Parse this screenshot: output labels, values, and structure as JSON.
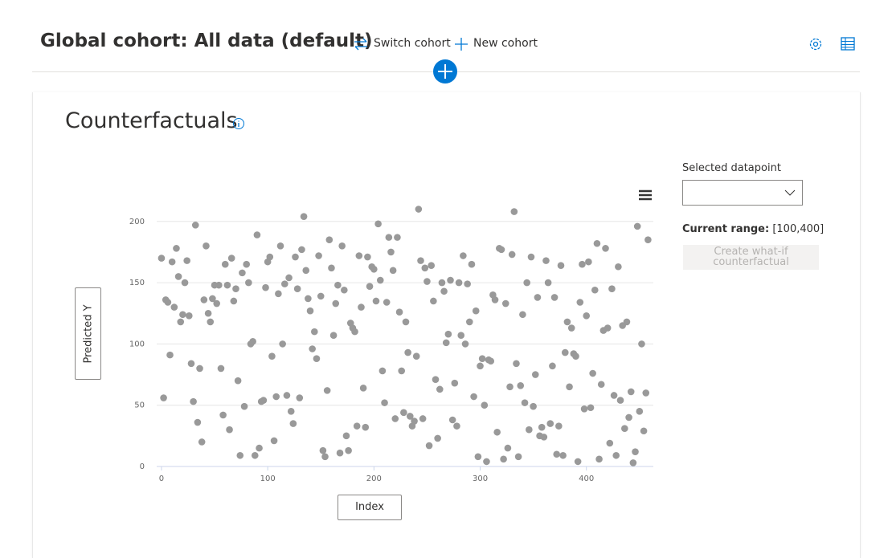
{
  "header": {
    "title": "Global cohort: All data (default)",
    "switch_cohort": "Switch cohort",
    "new_cohort": "New cohort"
  },
  "panel": {
    "title": "Counterfactuals"
  },
  "side": {
    "selected_label": "Selected datapoint",
    "range_label": "Current range:",
    "range_value": "[100,400]",
    "button": "Create what-if counterfactual"
  },
  "chart_data": {
    "type": "scatter",
    "xlabel": "Index",
    "ylabel": "Predicted Y",
    "color": "#999999",
    "grid": true,
    "xlim": [
      -4.5,
      463
    ],
    "ylim": [
      0,
      230
    ],
    "xticks": [
      0,
      100,
      200,
      300,
      400
    ],
    "yticks": [
      0,
      50,
      100,
      150,
      200
    ],
    "x": [
      0,
      2,
      4,
      6,
      8,
      10,
      12,
      14,
      16,
      18,
      20,
      22,
      24,
      26,
      28,
      30,
      32,
      34,
      36,
      38,
      40,
      42,
      44,
      46,
      48,
      50,
      52,
      54,
      56,
      58,
      60,
      62,
      64,
      66,
      68,
      70,
      72,
      74,
      76,
      78,
      80,
      82,
      84,
      86,
      88,
      90,
      92,
      94,
      96,
      98,
      100,
      102,
      104,
      106,
      108,
      110,
      112,
      114,
      116,
      118,
      120,
      122,
      124,
      126,
      128,
      130,
      132,
      134,
      136,
      138,
      140,
      142,
      144,
      146,
      148,
      150,
      152,
      154,
      156,
      158,
      160,
      162,
      164,
      166,
      168,
      170,
      172,
      174,
      176,
      178,
      180,
      182,
      184,
      186,
      188,
      190,
      192,
      194,
      196,
      198,
      200,
      202,
      204,
      206,
      208,
      210,
      212,
      214,
      216,
      218,
      220,
      222,
      224,
      226,
      228,
      230,
      232,
      234,
      236,
      238,
      240,
      242,
      244,
      246,
      248,
      250,
      252,
      254,
      256,
      258,
      260,
      262,
      264,
      266,
      268,
      270,
      272,
      274,
      276,
      278,
      280,
      282,
      284,
      286,
      288,
      290,
      292,
      294,
      296,
      298,
      300,
      302,
      304,
      306,
      308,
      310,
      312,
      314,
      316,
      318,
      320,
      322,
      324,
      326,
      328,
      330,
      332,
      334,
      336,
      338,
      340,
      342,
      344,
      346,
      348,
      350,
      352,
      354,
      356,
      358,
      360,
      362,
      364,
      366,
      368,
      370,
      372,
      374,
      376,
      378,
      380,
      382,
      384,
      386,
      388,
      390,
      392,
      394,
      396,
      398,
      400,
      402,
      404,
      406,
      408,
      410,
      412,
      414,
      416,
      418,
      420,
      422,
      424,
      426,
      428,
      430,
      432,
      434,
      436,
      438,
      440,
      442,
      444,
      446,
      448,
      450,
      452,
      454,
      456,
      458
    ],
    "values": [
      170,
      56,
      136,
      134,
      91,
      167,
      130,
      178,
      155,
      118,
      124,
      150,
      168,
      123,
      84,
      53,
      197,
      36,
      80,
      20,
      136,
      180,
      125,
      118,
      137,
      148,
      133,
      148,
      80,
      42,
      165,
      148,
      30,
      170,
      135,
      145,
      70,
      9,
      158,
      49,
      165,
      150,
      100,
      102,
      9,
      189,
      15,
      53,
      54,
      146,
      167,
      171,
      90,
      21,
      57,
      141,
      180,
      100,
      149,
      58,
      154,
      45,
      35,
      171,
      145,
      56,
      177,
      204,
      160,
      137,
      127,
      96,
      110,
      88,
      172,
      139,
      13,
      8,
      62,
      185,
      162,
      107,
      133,
      148,
      11,
      180,
      144,
      25,
      13,
      117,
      113,
      110,
      33,
      172,
      130,
      64,
      32,
      171,
      147,
      163,
      161,
      135,
      198,
      152,
      78,
      52,
      134,
      187,
      175,
      160,
      39,
      187,
      126,
      78,
      44,
      118,
      93,
      41,
      33,
      37,
      90,
      210,
      168,
      39,
      162,
      151,
      17,
      164,
      135,
      71,
      23,
      63,
      150,
      143,
      101,
      108,
      152,
      38,
      68,
      33,
      150,
      107,
      172,
      100,
      149,
      118,
      165,
      57,
      127,
      8,
      82,
      88,
      50,
      4,
      87,
      86,
      140,
      136,
      28,
      178,
      177,
      6,
      133,
      15,
      65,
      173,
      208,
      84,
      8,
      66,
      124,
      52,
      150,
      30,
      171,
      49,
      75,
      138,
      25,
      32,
      24,
      168,
      150,
      35,
      82,
      138,
      10,
      33,
      164,
      9,
      93,
      118,
      65,
      113,
      92,
      90,
      4,
      134,
      165,
      47,
      123,
      167,
      48,
      76,
      144,
      182,
      6,
      67,
      111,
      178,
      113,
      19,
      145,
      58,
      9,
      163,
      54,
      115,
      31,
      118,
      40,
      61,
      3,
      12,
      196,
      45,
      100,
      29,
      60,
      185
    ]
  }
}
